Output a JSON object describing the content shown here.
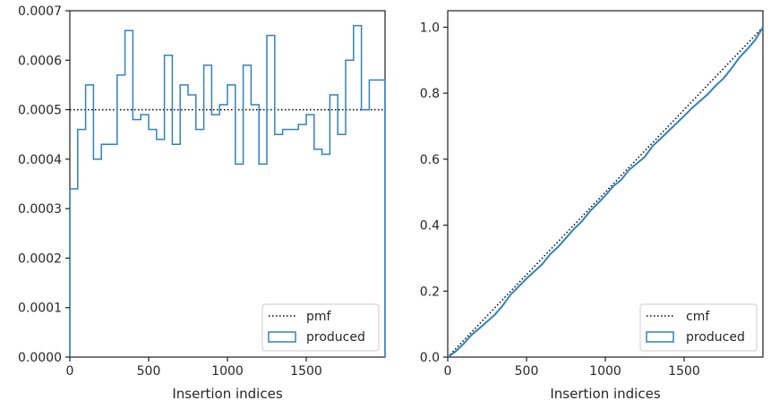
{
  "colors": {
    "produced": "#3182bd",
    "reference": "#000000",
    "axes": "#262626"
  },
  "chart_data": [
    {
      "type": "line",
      "subtype": "step-histogram",
      "title": "",
      "xlabel": "Insertion indices",
      "ylabel": "",
      "xlim": [
        0,
        2000
      ],
      "ylim": [
        0,
        0.0007
      ],
      "xticks": [
        0,
        500,
        1000,
        1500
      ],
      "yticks": [
        "0.0000",
        "0.0001",
        "0.0002",
        "0.0003",
        "0.0004",
        "0.0005",
        "0.0006",
        "0.0007"
      ],
      "grid": false,
      "legend_position": "lower right",
      "series": [
        {
          "name": "pmf",
          "style": "dotted",
          "x": [
            0,
            2000
          ],
          "values": [
            0.0005,
            0.0005
          ]
        },
        {
          "name": "produced",
          "style": "step",
          "bin_edges": [
            0,
            50,
            100,
            150,
            200,
            250,
            300,
            350,
            400,
            450,
            500,
            550,
            600,
            650,
            700,
            750,
            800,
            850,
            900,
            950,
            1000,
            1050,
            1100,
            1150,
            1200,
            1250,
            1300,
            1350,
            1400,
            1450,
            1500,
            1550,
            1600,
            1650,
            1700,
            1750,
            1800,
            1850,
            1900,
            1950,
            2000
          ],
          "values": [
            0.00034,
            0.00046,
            0.00055,
            0.0004,
            0.00043,
            0.00043,
            0.00057,
            0.00066,
            0.00048,
            0.00049,
            0.00046,
            0.00044,
            0.00061,
            0.00043,
            0.00055,
            0.00053,
            0.00046,
            0.00059,
            0.00049,
            0.00051,
            0.00055,
            0.00039,
            0.00059,
            0.00051,
            0.00039,
            0.00065,
            0.00045,
            0.00046,
            0.00046,
            0.00047,
            0.00049,
            0.00042,
            0.00041,
            0.00053,
            0.00045,
            0.0006,
            0.00067,
            0.0005,
            0.00056,
            0.00056
          ]
        }
      ]
    },
    {
      "type": "line",
      "title": "",
      "xlabel": "Insertion indices",
      "ylabel": "",
      "xlim": [
        0,
        2000
      ],
      "ylim": [
        0,
        1.05
      ],
      "xticks": [
        0,
        500,
        1000,
        1500
      ],
      "yticks": [
        "0.0",
        "0.2",
        "0.4",
        "0.6",
        "0.8",
        "1.0"
      ],
      "grid": false,
      "legend_position": "lower right",
      "series": [
        {
          "name": "cmf",
          "style": "dotted",
          "x": [
            0,
            2000
          ],
          "values": [
            0,
            1.0
          ]
        },
        {
          "name": "produced",
          "style": "solid",
          "x": [
            0,
            50,
            100,
            150,
            200,
            250,
            300,
            350,
            400,
            450,
            500,
            550,
            600,
            650,
            700,
            750,
            800,
            850,
            900,
            950,
            1000,
            1050,
            1100,
            1150,
            1200,
            1250,
            1300,
            1350,
            1400,
            1450,
            1500,
            1550,
            1600,
            1650,
            1700,
            1750,
            1800,
            1850,
            1900,
            1950,
            2000
          ],
          "values": [
            0,
            0.017,
            0.04,
            0.067,
            0.087,
            0.108,
            0.129,
            0.157,
            0.19,
            0.214,
            0.238,
            0.26,
            0.282,
            0.312,
            0.334,
            0.361,
            0.388,
            0.411,
            0.441,
            0.465,
            0.49,
            0.518,
            0.537,
            0.567,
            0.587,
            0.607,
            0.64,
            0.662,
            0.685,
            0.708,
            0.731,
            0.755,
            0.776,
            0.797,
            0.823,
            0.845,
            0.875,
            0.908,
            0.933,
            0.961,
            1.0
          ]
        }
      ]
    }
  ]
}
